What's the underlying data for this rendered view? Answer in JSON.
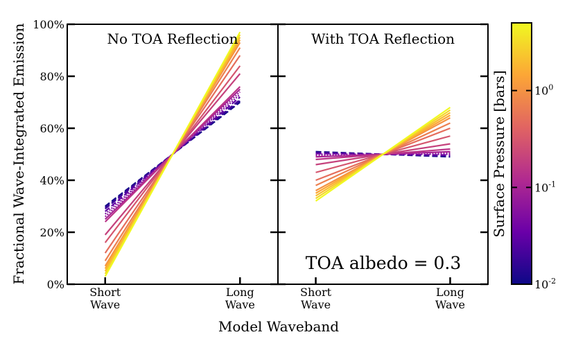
{
  "ylabel": "Fractional Wave-Integrated Emission",
  "xlabel": "Model Waveband",
  "yticks": [
    "0%",
    "20%",
    "40%",
    "60%",
    "80%",
    "100%"
  ],
  "xticks": [
    [
      "Short",
      "Wave"
    ],
    [
      "Long",
      "Wave"
    ]
  ],
  "colorbar": {
    "label": "Surface Pressure [bars]",
    "ticks": [
      {
        "base": "10",
        "exp": "-2",
        "value": 0.01
      },
      {
        "base": "10",
        "exp": "-1",
        "value": 0.1
      },
      {
        "base": "10",
        "exp": "0",
        "value": 1
      }
    ],
    "range": [
      0.01,
      5
    ],
    "colormap": [
      "#0d0887",
      "#6a00a8",
      "#b12a90",
      "#e16462",
      "#fca636",
      "#f0f921"
    ]
  },
  "annotation": "TOA albedo = 0.3",
  "chart_data": [
    {
      "type": "line",
      "title": "No TOA Reflection",
      "x": [
        "Short Wave",
        "Long Wave"
      ],
      "ylim": [
        0,
        100
      ],
      "series": [
        {
          "pressure": 0.01,
          "short": 30,
          "long": 70,
          "style": "dashed"
        },
        {
          "pressure": 0.015,
          "short": 29.5,
          "long": 70.5,
          "style": "dashed"
        },
        {
          "pressure": 0.02,
          "short": 29,
          "long": 71,
          "style": "dashed"
        },
        {
          "pressure": 0.03,
          "short": 28,
          "long": 72,
          "style": "dashed"
        },
        {
          "pressure": 0.05,
          "short": 27,
          "long": 73,
          "style": "dotted"
        },
        {
          "pressure": 0.07,
          "short": 26,
          "long": 74,
          "style": "dotted"
        },
        {
          "pressure": 0.1,
          "short": 25,
          "long": 75,
          "style": "solid"
        },
        {
          "pressure": 0.15,
          "short": 24,
          "long": 76,
          "style": "solid"
        },
        {
          "pressure": 0.2,
          "short": 19,
          "long": 81,
          "style": "solid"
        },
        {
          "pressure": 0.3,
          "short": 16,
          "long": 84,
          "style": "solid"
        },
        {
          "pressure": 0.5,
          "short": 12,
          "long": 88,
          "style": "solid"
        },
        {
          "pressure": 0.7,
          "short": 9,
          "long": 91,
          "style": "solid"
        },
        {
          "pressure": 1,
          "short": 7,
          "long": 93,
          "style": "solid"
        },
        {
          "pressure": 1.5,
          "short": 6,
          "long": 94,
          "style": "solid"
        },
        {
          "pressure": 2,
          "short": 5,
          "long": 95,
          "style": "solid"
        },
        {
          "pressure": 3,
          "short": 4,
          "long": 96,
          "style": "solid"
        },
        {
          "pressure": 5,
          "short": 3,
          "long": 97,
          "style": "solid"
        }
      ]
    },
    {
      "type": "line",
      "title": "With TOA Reflection",
      "x": [
        "Short Wave",
        "Long Wave"
      ],
      "ylim": [
        0,
        100
      ],
      "series": [
        {
          "pressure": 0.01,
          "short": 51,
          "long": 49,
          "style": "dashed"
        },
        {
          "pressure": 0.015,
          "short": 50.8,
          "long": 49.2,
          "style": "dashed"
        },
        {
          "pressure": 0.02,
          "short": 50.5,
          "long": 49.5,
          "style": "dashed"
        },
        {
          "pressure": 0.03,
          "short": 50.3,
          "long": 49.7,
          "style": "dashed"
        },
        {
          "pressure": 0.05,
          "short": 50,
          "long": 50,
          "style": "dotted"
        },
        {
          "pressure": 0.07,
          "short": 49.5,
          "long": 50.5,
          "style": "dotted"
        },
        {
          "pressure": 0.1,
          "short": 49,
          "long": 51,
          "style": "solid"
        },
        {
          "pressure": 0.15,
          "short": 48,
          "long": 52,
          "style": "solid"
        },
        {
          "pressure": 0.2,
          "short": 46,
          "long": 54,
          "style": "solid"
        },
        {
          "pressure": 0.3,
          "short": 43,
          "long": 57,
          "style": "solid"
        },
        {
          "pressure": 0.5,
          "short": 40,
          "long": 60,
          "style": "solid"
        },
        {
          "pressure": 0.7,
          "short": 38,
          "long": 62,
          "style": "solid"
        },
        {
          "pressure": 1,
          "short": 36,
          "long": 64,
          "style": "solid"
        },
        {
          "pressure": 1.5,
          "short": 35,
          "long": 65,
          "style": "solid"
        },
        {
          "pressure": 2,
          "short": 34,
          "long": 66,
          "style": "solid"
        },
        {
          "pressure": 3,
          "short": 33,
          "long": 67,
          "style": "solid"
        },
        {
          "pressure": 5,
          "short": 32,
          "long": 68,
          "style": "solid"
        }
      ]
    }
  ]
}
